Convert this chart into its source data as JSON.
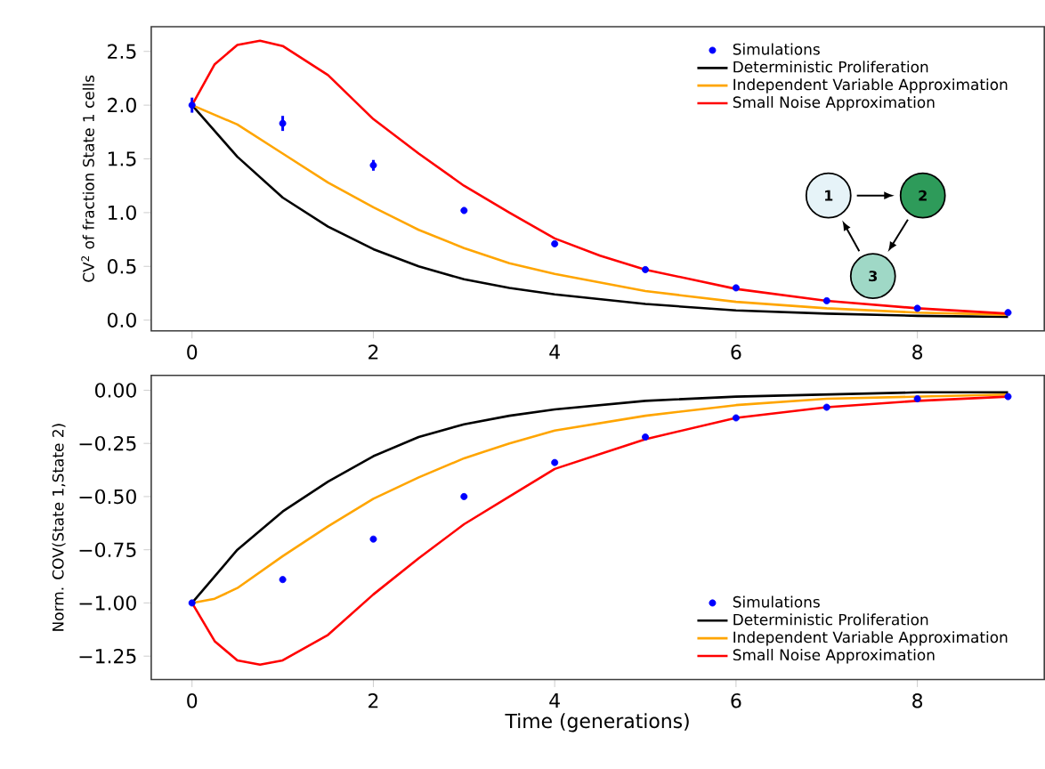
{
  "chart_data": [
    {
      "type": "line",
      "ylabel": "CV$^{2}$ of fraction State 1 cells",
      "xlim": [
        -0.45,
        9.4
      ],
      "ylim": [
        -0.1,
        2.73
      ],
      "xticks": [
        0,
        2,
        4,
        6,
        8
      ],
      "yticks": [
        {
          "value": 0,
          "label": "0.0"
        },
        {
          "value": 0.5,
          "label": "0.5"
        },
        {
          "value": 1,
          "label": "1.0"
        },
        {
          "value": 1.5,
          "label": "1.5"
        },
        {
          "value": 2,
          "label": "2.0"
        },
        {
          "value": 2.5,
          "label": "2.5"
        }
      ],
      "legend": "top right",
      "annotations": [
        "1",
        "2",
        "3"
      ],
      "series": [
        {
          "name": "Simulations",
          "type": "scatter",
          "color": "#0000ff",
          "x": [
            0,
            1,
            2,
            3,
            4,
            5,
            6,
            7,
            8,
            9
          ],
          "values": [
            2.0,
            1.83,
            1.44,
            1.02,
            0.71,
            0.47,
            0.3,
            0.18,
            0.11,
            0.07
          ],
          "errors": [
            0.07,
            0.07,
            0.05,
            0.03,
            null,
            null,
            null,
            null,
            null,
            null
          ]
        },
        {
          "name": "Deterministic Proliferation",
          "type": "line",
          "color": "#000000",
          "x": [
            0,
            0.5,
            1,
            1.5,
            2,
            2.5,
            3,
            3.5,
            4,
            5,
            6,
            7,
            8,
            9
          ],
          "values": [
            2.0,
            1.52,
            1.14,
            0.87,
            0.66,
            0.5,
            0.38,
            0.3,
            0.24,
            0.15,
            0.09,
            0.06,
            0.04,
            0.03
          ]
        },
        {
          "name": "Independent Variable Approximation",
          "type": "line",
          "color": "#ffa500",
          "x": [
            0,
            0.5,
            1,
            1.5,
            2,
            2.5,
            3,
            3.5,
            4,
            5,
            6,
            7,
            8,
            9
          ],
          "values": [
            2.0,
            1.82,
            1.55,
            1.28,
            1.05,
            0.84,
            0.67,
            0.53,
            0.43,
            0.27,
            0.17,
            0.11,
            0.07,
            0.05
          ]
        },
        {
          "name": "Small Noise Approximation",
          "type": "line",
          "color": "#ff0000",
          "x": [
            0,
            0.25,
            0.5,
            0.75,
            1,
            1.5,
            2,
            2.5,
            3,
            3.5,
            4,
            4.5,
            5,
            6,
            7,
            8,
            9
          ],
          "values": [
            2.0,
            2.38,
            2.56,
            2.6,
            2.55,
            2.28,
            1.87,
            1.55,
            1.25,
            1.0,
            0.76,
            0.6,
            0.47,
            0.29,
            0.18,
            0.11,
            0.06
          ]
        }
      ]
    },
    {
      "type": "line",
      "ylabel": "Norm. COV(State 1,State 2)",
      "xlabel": "Time (generations)",
      "xlim": [
        -0.45,
        9.4
      ],
      "ylim": [
        -1.36,
        0.07
      ],
      "xticks": [
        0,
        2,
        4,
        6,
        8
      ],
      "yticks": [
        {
          "value": -1.25,
          "label": "−1.25"
        },
        {
          "value": -1,
          "label": "−1.00"
        },
        {
          "value": -0.75,
          "label": "−0.75"
        },
        {
          "value": -0.5,
          "label": "−0.50"
        },
        {
          "value": -0.25,
          "label": "−0.25"
        },
        {
          "value": 0,
          "label": "0.00"
        }
      ],
      "legend": "bottom right",
      "series": [
        {
          "name": "Simulations",
          "type": "scatter",
          "color": "#0000ff",
          "x": [
            0,
            1,
            2,
            3,
            4,
            5,
            6,
            7,
            8,
            9
          ],
          "values": [
            -1.0,
            -0.89,
            -0.7,
            -0.5,
            -0.34,
            -0.22,
            -0.13,
            -0.08,
            -0.04,
            -0.03
          ]
        },
        {
          "name": "Deterministic Proliferation",
          "type": "line",
          "color": "#000000",
          "x": [
            0,
            0.5,
            1,
            1.5,
            2,
            2.5,
            3,
            3.5,
            4,
            5,
            6,
            7,
            8,
            9
          ],
          "values": [
            -1.0,
            -0.75,
            -0.57,
            -0.43,
            -0.31,
            -0.22,
            -0.16,
            -0.12,
            -0.09,
            -0.05,
            -0.03,
            -0.02,
            -0.01,
            -0.01
          ]
        },
        {
          "name": "Independent Variable Approximation",
          "type": "line",
          "color": "#ffa500",
          "x": [
            0,
            0.25,
            0.5,
            1,
            1.5,
            2,
            2.5,
            3,
            3.5,
            4,
            5,
            6,
            7,
            8,
            9
          ],
          "values": [
            -1.0,
            -0.98,
            -0.93,
            -0.78,
            -0.64,
            -0.51,
            -0.41,
            -0.32,
            -0.25,
            -0.19,
            -0.12,
            -0.07,
            -0.04,
            -0.03,
            -0.02
          ]
        },
        {
          "name": "Small Noise Approximation",
          "type": "line",
          "color": "#ff0000",
          "x": [
            0,
            0.25,
            0.5,
            0.75,
            1,
            1.5,
            2,
            2.5,
            3,
            3.5,
            4,
            5,
            6,
            7,
            8,
            9
          ],
          "values": [
            -1.0,
            -1.18,
            -1.27,
            -1.29,
            -1.27,
            -1.15,
            -0.96,
            -0.79,
            -0.63,
            -0.5,
            -0.37,
            -0.23,
            -0.13,
            -0.08,
            -0.05,
            -0.03
          ]
        }
      ]
    }
  ]
}
